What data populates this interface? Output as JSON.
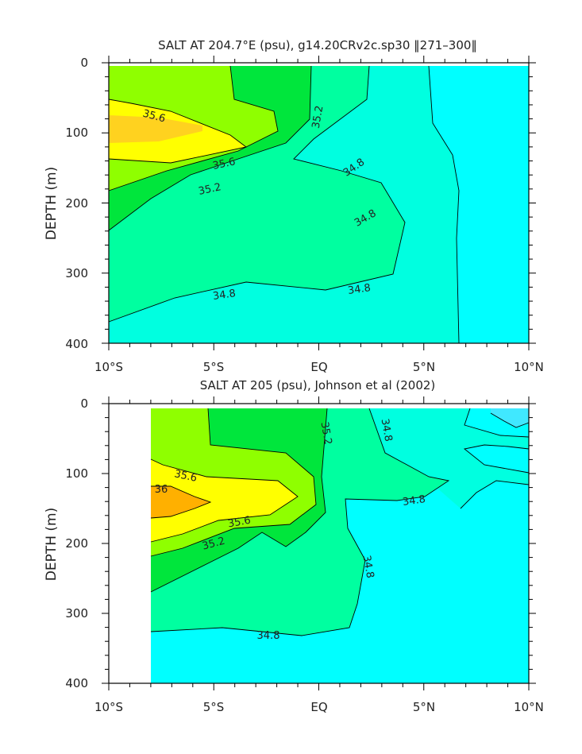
{
  "chart_data": [
    {
      "type": "heatmap",
      "title": "SALT AT 204.7°E (psu), g14.20CRv2c.sp30 ‖271–300‖",
      "xlabel": "",
      "ylabel": "DEPTH (m)",
      "x_ticks": [
        "10°S",
        "5°S",
        "EQ",
        "5°N",
        "10°N"
      ],
      "y_ticks": [
        "0",
        "100",
        "200",
        "300",
        "400"
      ],
      "xlim": [
        -10,
        10
      ],
      "ylim": [
        400,
        0
      ],
      "contour_levels": [
        34.8,
        35.2,
        35.6
      ],
      "contour_labels": [
        "35.6",
        "35.6",
        "35.2",
        "35.2",
        "34.8",
        "34.8",
        "34.8",
        "34.8"
      ],
      "colors": {
        "highest": "#ffd21f",
        "35.6": "#ffff00",
        "35.2": "#8fff00",
        "35.0": "#00e63c",
        "34.8": "#00ffa0",
        "34.6": "#00ffe0",
        "lowest": "#00ffff"
      }
    },
    {
      "type": "heatmap",
      "title": "SALT AT 205 (psu), Johnson et al (2002)",
      "xlabel": "",
      "ylabel": "DEPTH (m)",
      "x_ticks": [
        "10°S",
        "5°S",
        "EQ",
        "5°N",
        "10°N"
      ],
      "y_ticks": [
        "0",
        "100",
        "200",
        "300",
        "400"
      ],
      "xlim": [
        -10,
        10
      ],
      "ylim": [
        400,
        0
      ],
      "contour_levels": [
        34.8,
        35.2,
        35.6,
        36.0
      ],
      "contour_labels": [
        "35.6",
        "36",
        "35.6",
        "35.2",
        "35.2",
        "34.8",
        "34.8",
        "34.8",
        "34.8"
      ],
      "colors": {
        "36.0": "#ffb000",
        "35.6": "#ffff00",
        "35.2": "#8fff00",
        "35.0": "#00e63c",
        "34.8": "#00ffa0",
        "34.6": "#00ffe0",
        "lowest": "#00ffff",
        "34.4": "#40e8ff"
      }
    }
  ]
}
